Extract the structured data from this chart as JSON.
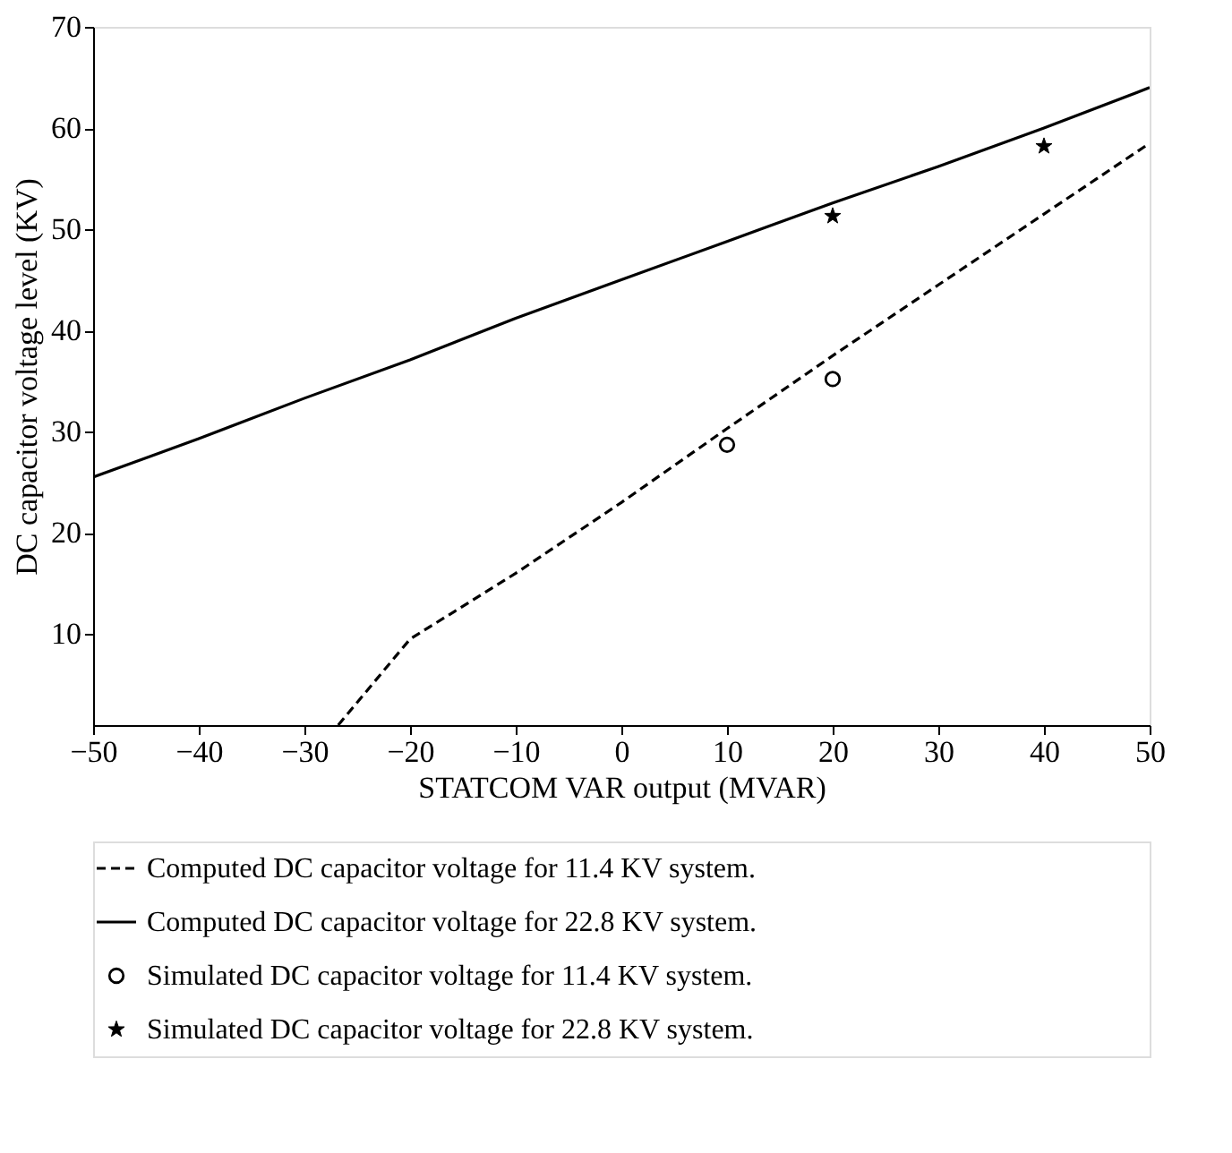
{
  "chart_data": {
    "type": "line",
    "xlabel": "STATCOM VAR output (MVAR)",
    "ylabel": "DC capacitor voltage level (KV)",
    "xlim": [
      -50,
      50
    ],
    "xticks": [
      -50,
      -40,
      -30,
      -20,
      -10,
      0,
      10,
      20,
      30,
      40,
      50
    ],
    "ylim": [
      1,
      70
    ],
    "yticks": [
      10,
      20,
      30,
      40,
      50,
      60,
      70
    ],
    "grid": false,
    "legend": "bottom",
    "series": [
      {
        "name": "Computed DC capacitor voltage for 11.4 KV system.",
        "type": "line",
        "line_style": "dashed",
        "marker": "none",
        "color": "#000000",
        "x": [
          -26.8,
          -20,
          -10,
          0,
          10,
          20,
          30,
          40,
          50
        ],
        "values": [
          1,
          9.5,
          16,
          23,
          30.3,
          37.5,
          44.5,
          51.5,
          58.5
        ]
      },
      {
        "name": "Computed DC capacitor voltage for 22.8 KV system.",
        "type": "line",
        "line_style": "solid",
        "marker": "none",
        "color": "#000000",
        "x": [
          -50,
          -40,
          -30,
          -20,
          -10,
          0,
          10,
          20,
          30,
          40,
          50
        ],
        "values": [
          25.5,
          29.3,
          33.3,
          37.1,
          41.2,
          45,
          48.8,
          52.6,
          56.2,
          60,
          64
        ]
      },
      {
        "name": "Simulated DC capacitor voltage for 11.4 KV system.",
        "type": "scatter",
        "marker": "circle",
        "color": "#000000",
        "x": [
          10,
          20
        ],
        "values": [
          28.7,
          35.2
        ]
      },
      {
        "name": "Simulated DC capacitor voltage for 22.8 KV system.",
        "type": "scatter",
        "marker": "star",
        "color": "#000000",
        "x": [
          20,
          40
        ],
        "values": [
          51.3,
          58.2
        ]
      }
    ]
  }
}
